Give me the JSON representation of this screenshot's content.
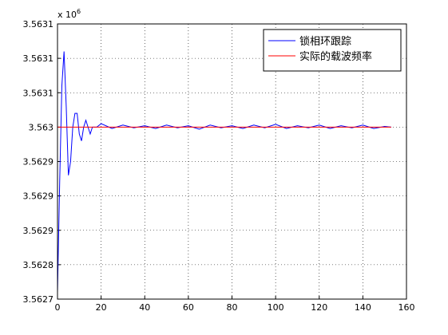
{
  "chart_data": {
    "type": "line",
    "multiplier": {
      "base": "x 10",
      "exponent": "6"
    },
    "x": [
      0,
      1,
      2,
      3,
      4,
      5,
      6,
      7,
      8,
      9,
      10,
      11,
      12,
      13,
      14,
      15,
      16,
      18,
      20,
      25,
      30,
      35,
      40,
      45,
      50,
      55,
      60,
      65,
      70,
      75,
      80,
      85,
      90,
      95,
      100,
      105,
      110,
      115,
      120,
      125,
      130,
      135,
      140,
      145,
      150,
      153
    ],
    "series": [
      {
        "name": "锁相环跟踪",
        "color": "#0000ff",
        "values": [
          3.56276,
          3.56292,
          3.56306,
          3.56311,
          3.56303,
          3.56293,
          3.56295,
          3.563,
          3.56302,
          3.56302,
          3.56299,
          3.56298,
          3.563,
          3.56301,
          3.563,
          3.56299,
          3.563,
          3.563,
          3.563005,
          3.562998,
          3.563003,
          3.562999,
          3.563002,
          3.562998,
          3.563003,
          3.562999,
          3.563002,
          3.562997,
          3.563003,
          3.562999,
          3.563002,
          3.562998,
          3.563003,
          3.562999,
          3.563004,
          3.562998,
          3.563002,
          3.562999,
          3.563003,
          3.562998,
          3.563002,
          3.562999,
          3.563003,
          3.562998,
          3.563001,
          3.563
        ]
      },
      {
        "name": "实际的载波频率",
        "color": "#ff0000",
        "values": [
          3.563,
          3.563,
          3.563,
          3.563,
          3.563,
          3.563,
          3.563,
          3.563,
          3.563,
          3.563,
          3.563,
          3.563,
          3.563,
          3.563,
          3.563,
          3.563,
          3.563,
          3.563,
          3.563,
          3.563,
          3.563,
          3.563,
          3.563,
          3.563,
          3.563,
          3.563,
          3.563,
          3.563,
          3.563,
          3.563,
          3.563,
          3.563,
          3.563,
          3.563,
          3.563,
          3.563,
          3.563,
          3.563,
          3.563,
          3.563,
          3.563,
          3.563,
          3.563,
          3.563,
          3.563,
          3.563
        ]
      }
    ],
    "xlim": [
      0,
      160
    ],
    "xticks": [
      0,
      20,
      40,
      60,
      80,
      100,
      120,
      140,
      160
    ],
    "ylim": [
      3.56275,
      3.56315
    ],
    "yticks": [
      {
        "value": 3.56275,
        "label": "3.5627"
      },
      {
        "value": 3.5628,
        "label": "3.5628"
      },
      {
        "value": 3.56285,
        "label": "3.5629"
      },
      {
        "value": 3.5629,
        "label": "3.5629"
      },
      {
        "value": 3.56295,
        "label": "3.5629"
      },
      {
        "value": 3.563,
        "label": "3.563"
      },
      {
        "value": 3.56305,
        "label": "3.5631"
      },
      {
        "value": 3.5631,
        "label": "3.5631"
      },
      {
        "value": 3.56315,
        "label": "3.5631"
      }
    ],
    "grid": true,
    "legend": "northeast"
  }
}
